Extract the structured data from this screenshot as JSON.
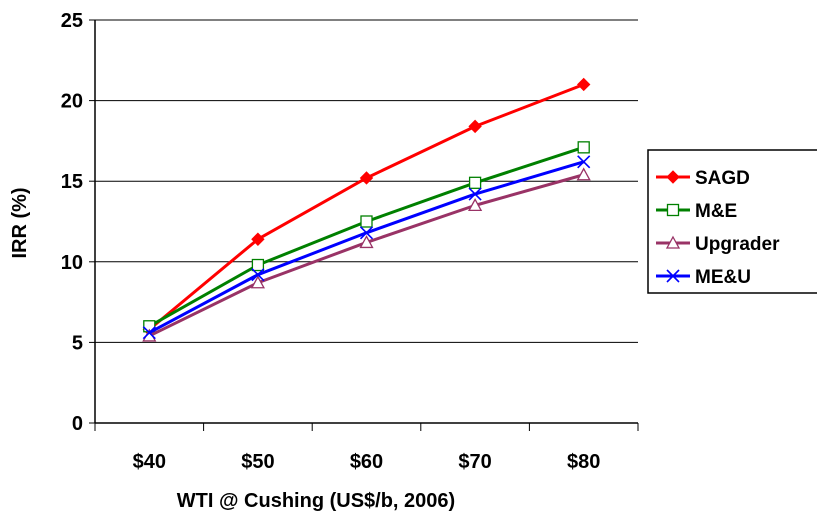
{
  "chart_data": {
    "type": "line",
    "title": "",
    "xlabel": "WTI @ Cushing (US$/b, 2006)",
    "ylabel": "IRR (%)",
    "categories": [
      "$40",
      "$50",
      "$60",
      "$70",
      "$80"
    ],
    "ylim": [
      0,
      25
    ],
    "yticks": [
      0,
      5,
      10,
      15,
      20,
      25
    ],
    "grid": "horizontal",
    "legend_position": "right",
    "series": [
      {
        "name": "SAGD",
        "color": "#ff0000",
        "marker": "diamond",
        "values": [
          5.8,
          11.4,
          15.2,
          18.4,
          21.0
        ]
      },
      {
        "name": "M&E",
        "color": "#008000",
        "marker": "square",
        "values": [
          6.0,
          9.8,
          12.5,
          14.9,
          17.1
        ]
      },
      {
        "name": "Upgrader",
        "color": "#993366",
        "marker": "triangle",
        "values": [
          5.4,
          8.7,
          11.2,
          13.5,
          15.4
        ]
      },
      {
        "name": "ME&U",
        "color": "#0000ff",
        "marker": "x",
        "values": [
          5.6,
          9.2,
          11.8,
          14.2,
          16.2
        ]
      }
    ]
  }
}
